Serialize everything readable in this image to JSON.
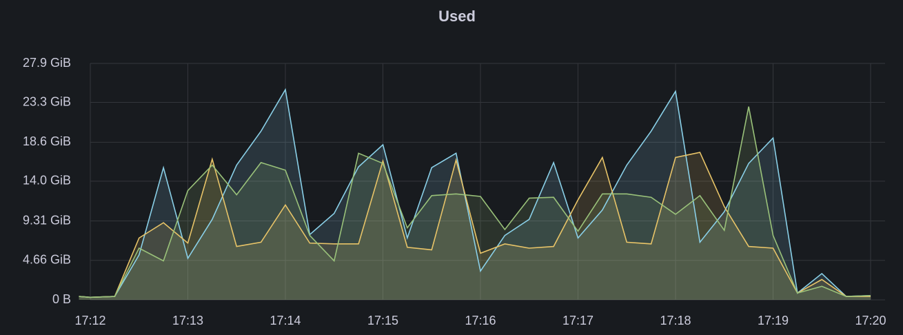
{
  "chart_data": {
    "type": "area",
    "title": "Used",
    "x": [
      "17:11:53",
      "17:12:00",
      "17:12:15",
      "17:12:30",
      "17:12:45",
      "17:13:00",
      "17:13:15",
      "17:13:30",
      "17:13:45",
      "17:14:00",
      "17:14:15",
      "17:14:30",
      "17:14:45",
      "17:15:00",
      "17:15:15",
      "17:15:30",
      "17:15:45",
      "17:16:00",
      "17:16:15",
      "17:16:30",
      "17:16:45",
      "17:17:00",
      "17:17:15",
      "17:17:30",
      "17:17:45",
      "17:18:00",
      "17:18:15",
      "17:18:30",
      "17:18:45",
      "17:19:00",
      "17:19:15",
      "17:19:30",
      "17:19:45",
      "17:20:00"
    ],
    "series": [
      {
        "color": "#8ad0e8",
        "values": [
          0.4,
          0.3,
          0.4,
          5.3,
          15.6,
          4.9,
          9.5,
          15.9,
          19.9,
          24.8,
          7.7,
          10.2,
          15.7,
          18.3,
          7.3,
          15.6,
          17.3,
          3.4,
          7.6,
          9.5,
          16.2,
          7.3,
          10.6,
          15.9,
          19.9,
          24.6,
          6.8,
          10.4,
          16.1,
          19.1,
          0.8,
          3.1,
          0.4,
          0.5
        ]
      },
      {
        "color": "#e8c468",
        "values": [
          0.4,
          0.3,
          0.4,
          7.3,
          9.1,
          6.7,
          16.6,
          6.3,
          6.8,
          11.2,
          6.7,
          6.6,
          6.6,
          16.4,
          6.2,
          5.9,
          16.5,
          5.5,
          6.6,
          6.1,
          6.3,
          11.8,
          16.8,
          6.8,
          6.6,
          16.8,
          17.4,
          11.0,
          6.3,
          6.1,
          0.8,
          2.4,
          0.4,
          0.4
        ]
      },
      {
        "color": "#9ac27a",
        "values": [
          0.4,
          0.3,
          0.4,
          6.1,
          4.6,
          12.9,
          15.9,
          12.4,
          16.2,
          15.3,
          7.6,
          4.6,
          17.3,
          16.1,
          8.5,
          12.3,
          12.5,
          12.2,
          8.3,
          12.0,
          12.1,
          8.1,
          12.5,
          12.5,
          12.1,
          10.1,
          12.3,
          8.2,
          22.8,
          7.6,
          0.8,
          1.6,
          0.4,
          0.5
        ]
      }
    ],
    "xlim": [
      "17:11:53",
      "17:20:00"
    ],
    "xticks": [
      "17:12",
      "17:13",
      "17:14",
      "17:15",
      "17:16",
      "17:17",
      "17:18",
      "17:19",
      "17:20"
    ],
    "ylim": [
      0,
      27.9
    ],
    "yticks": [
      {
        "value": 0,
        "label": "0 B"
      },
      {
        "value": 4.66,
        "label": "4.66 GiB"
      },
      {
        "value": 9.31,
        "label": "9.31 GiB"
      },
      {
        "value": 14.0,
        "label": "14.0 GiB"
      },
      {
        "value": 18.6,
        "label": "18.6 GiB"
      },
      {
        "value": 23.3,
        "label": "23.3 GiB"
      },
      {
        "value": 27.9,
        "label": "27.9 GiB"
      }
    ],
    "grid": true
  }
}
